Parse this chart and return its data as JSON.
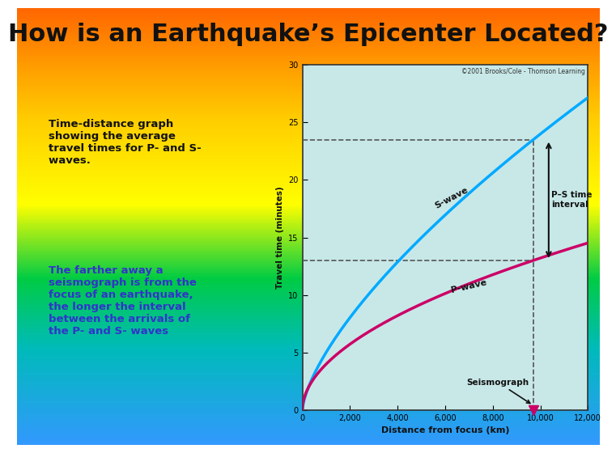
{
  "title": "How is an Earthquake’s Epicenter Located?",
  "title_fontsize": 22,
  "title_color": "#111111",
  "graph_bg": "#c8e8e8",
  "xlim": [
    0,
    12000
  ],
  "ylim": [
    0,
    30
  ],
  "xticks": [
    0,
    2000,
    4000,
    6000,
    8000,
    10000,
    12000
  ],
  "yticks": [
    0,
    5,
    10,
    15,
    20,
    25,
    30
  ],
  "xlabel": "Distance from focus (km)",
  "ylabel": "Travel time (minutes)",
  "s_wave_color": "#00aaff",
  "p_wave_color": "#cc0066",
  "seismograph_x": 9700,
  "seismograph_s_y": 23.5,
  "seismograph_p_y": 13.0,
  "dashed_line_color": "#555555",
  "arrow_color": "#111111",
  "ps_label": "P–S time\ninterval",
  "seismograph_label": "Seismograph",
  "copyright": "©2001 Brooks/Cole - Thomson Learning",
  "text_body_black": "Time-distance graph\nshowing the average\ntravel times for P- and S-\nwaves. ",
  "text_body_blue": "The farther away a\nseismograph is from the\nfocus of an earthquake,\nthe longer the interval\nbetween the arrivals of\nthe P- and S- waves",
  "s_n": 0.68,
  "s_anchor_x": 9700,
  "s_anchor_y": 23.5,
  "p_n": 0.52,
  "p_anchor_x": 9700,
  "p_anchor_y": 13.0,
  "fig_width": 7.2,
  "fig_height": 5.4
}
